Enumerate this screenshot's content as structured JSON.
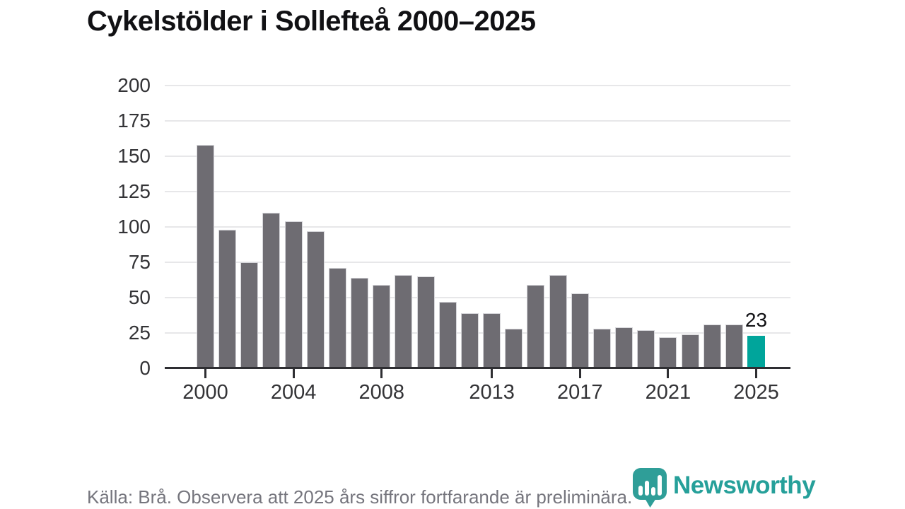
{
  "title": "Cykelstölder i Sollefteå 2000–2025",
  "footer": {
    "source_note": "Källa: Brå. Observera att 2025 års siffror fortfarande är preliminära."
  },
  "logo": {
    "brand": "Newsworthy",
    "icon": "newsworthy-pin-barchart-icon"
  },
  "colors": {
    "bar": "#6e6c72",
    "bar_highlight": "#00a59b",
    "grid": "#e7e7e9",
    "axis": "#2e2e32",
    "title_text": "#111114",
    "tick_text": "#333336",
    "footer_text": "#75757d",
    "brand_teal": "#26a09a"
  },
  "chart_data": {
    "type": "bar",
    "title": "Cykelstölder i Sollefteå 2000–2025",
    "x": [
      2000,
      2001,
      2002,
      2003,
      2004,
      2005,
      2006,
      2007,
      2008,
      2009,
      2010,
      2011,
      2012,
      2013,
      2014,
      2015,
      2016,
      2017,
      2018,
      2019,
      2020,
      2021,
      2022,
      2023,
      2024,
      2025
    ],
    "values": [
      158,
      98,
      75,
      110,
      104,
      97,
      71,
      64,
      59,
      66,
      65,
      47,
      39,
      39,
      28,
      59,
      66,
      53,
      28,
      29,
      27,
      22,
      24,
      31,
      31,
      23
    ],
    "highlight_year": 2025,
    "highlight_value_label": "23",
    "xtick_labels": [
      "2000",
      "2004",
      "2008",
      "2013",
      "2017",
      "2021",
      "2025"
    ],
    "xtick_years": [
      2000,
      2004,
      2008,
      2013,
      2017,
      2021,
      2025
    ],
    "ytick_labels": [
      "0",
      "25",
      "50",
      "75",
      "100",
      "125",
      "150",
      "175",
      "200"
    ],
    "yticks": [
      0,
      25,
      50,
      75,
      100,
      125,
      150,
      175,
      200
    ],
    "ylim": [
      0,
      200
    ],
    "grid": "horizontal",
    "legend": "none",
    "xlabel": "",
    "ylabel": ""
  }
}
